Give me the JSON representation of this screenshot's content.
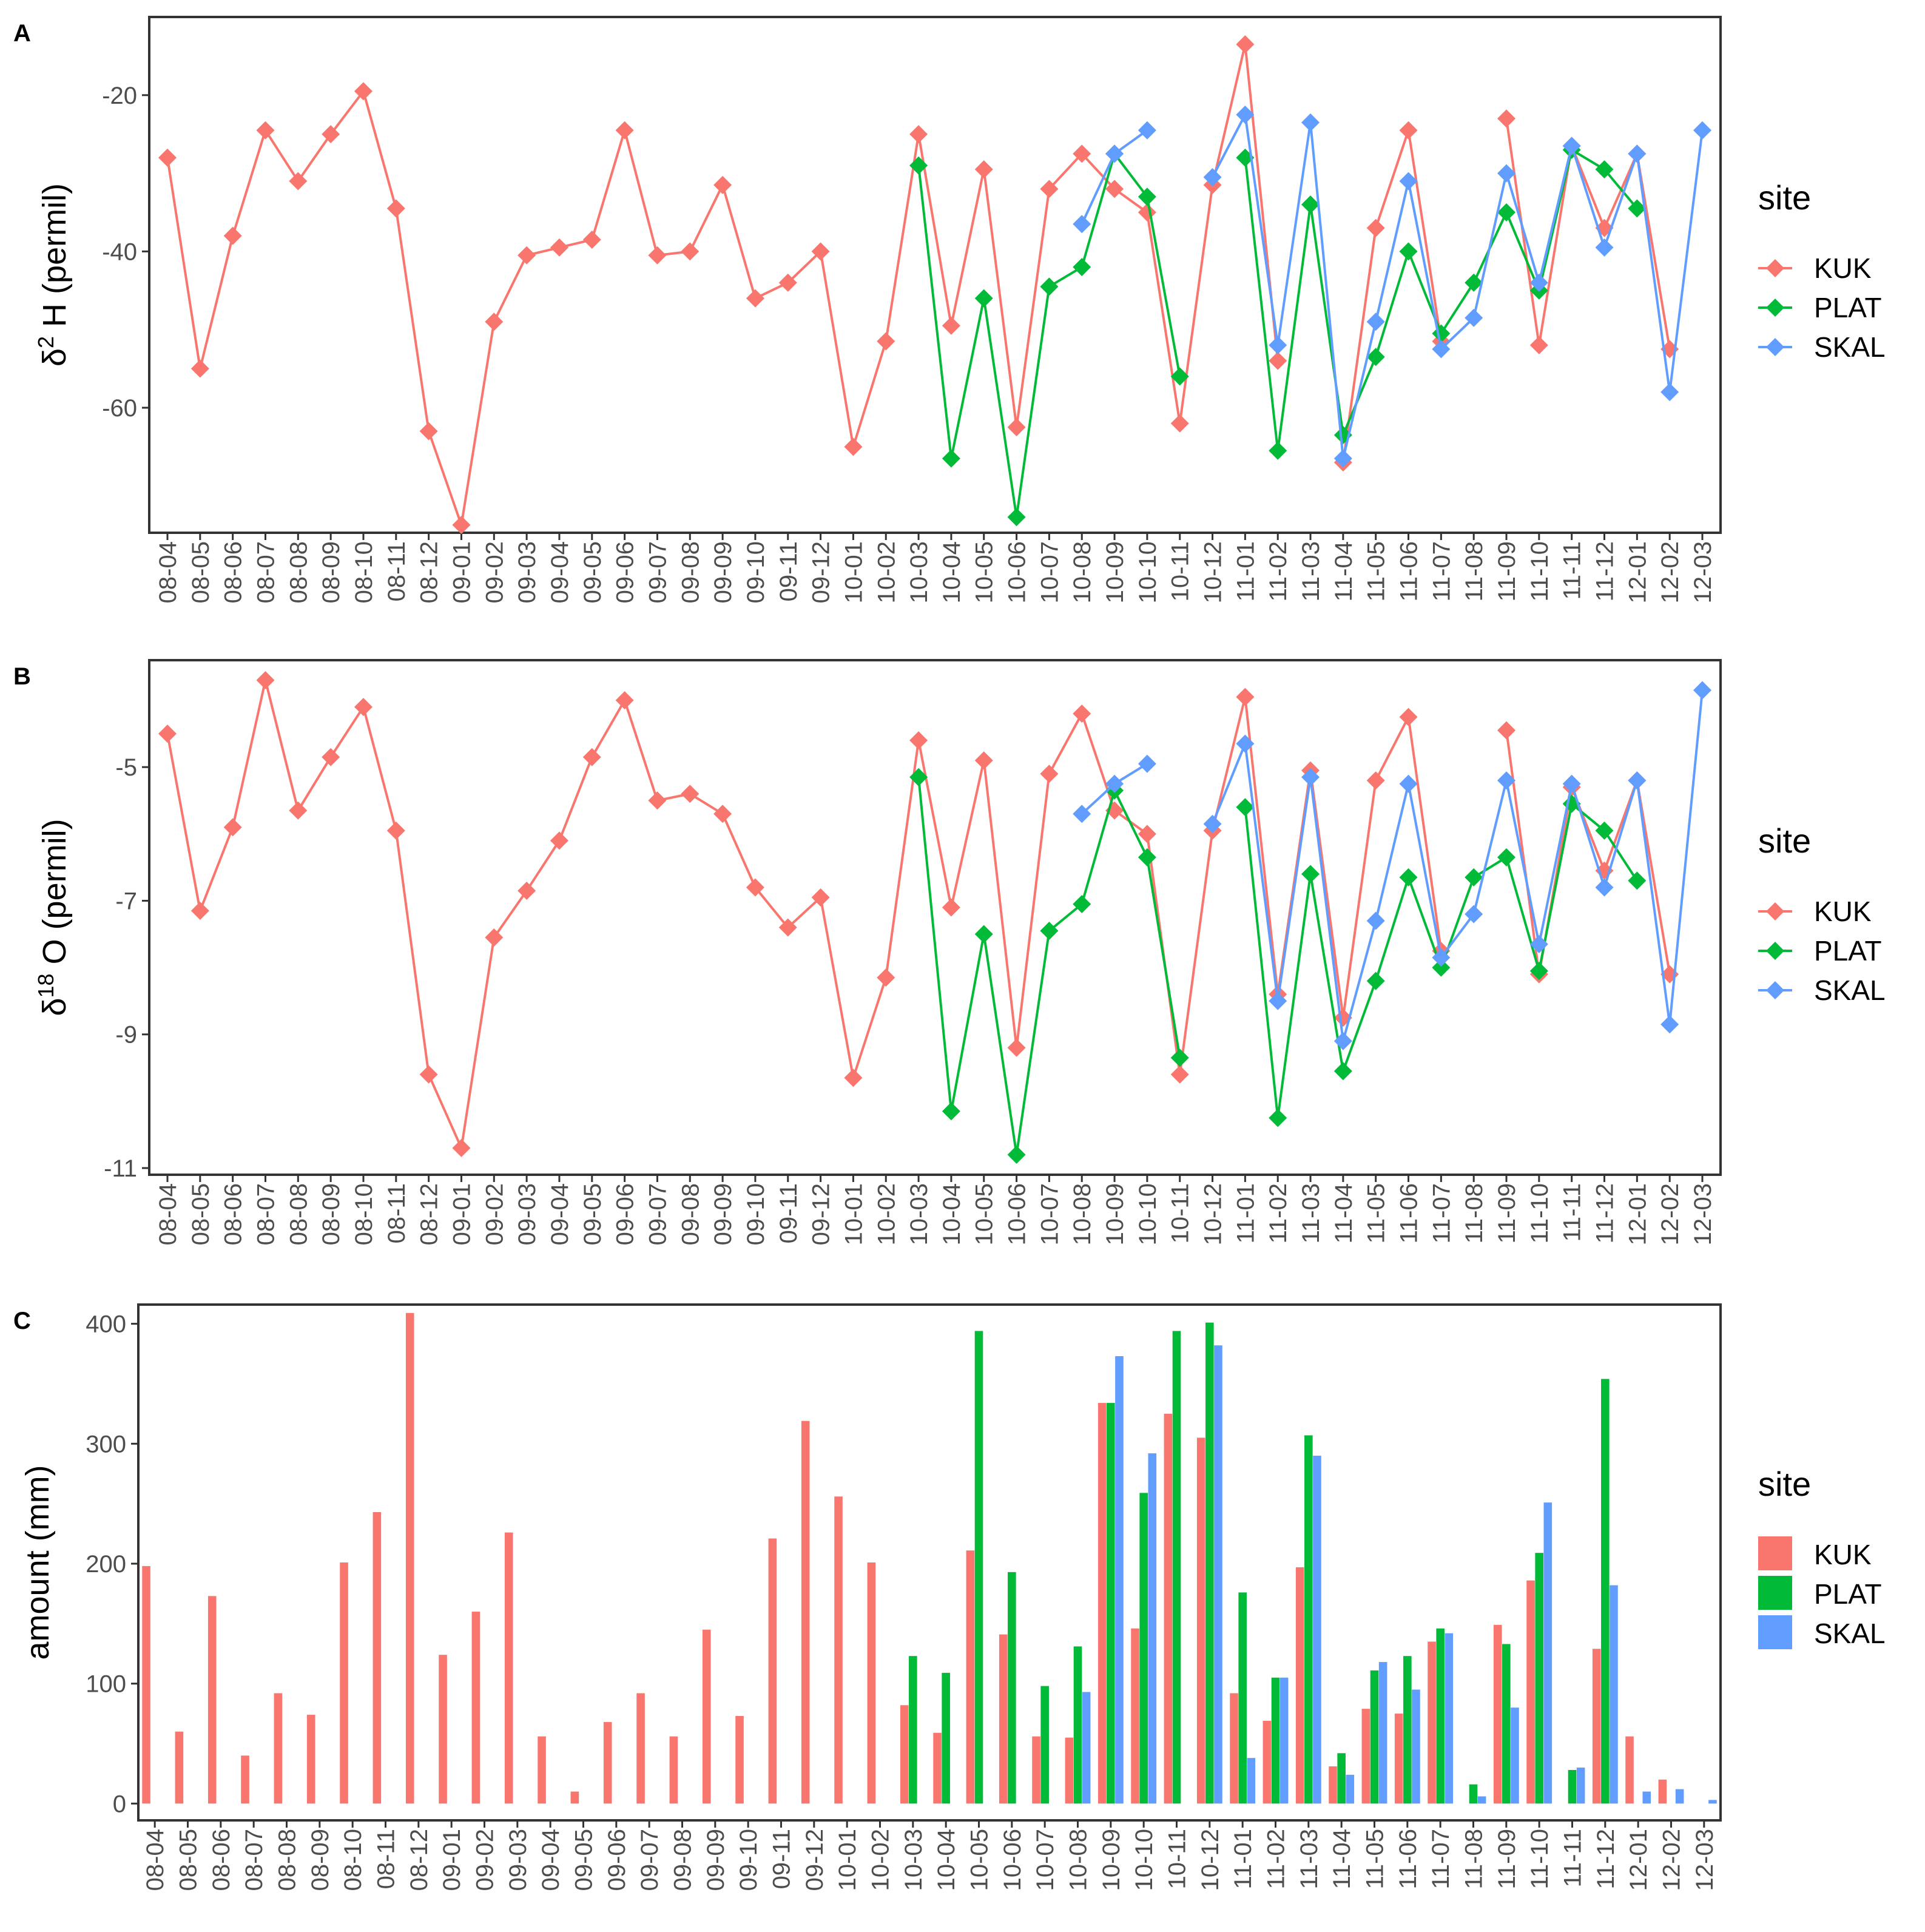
{
  "colors": {
    "KUK": "#F8766D",
    "PLAT": "#00BA38",
    "SKAL": "#619CFF"
  },
  "chart_data": [
    {
      "type": "line",
      "panel_label": "A",
      "ylabel_prefix": "δ",
      "ylabel_sup": "2",
      "ylabel_rest": " H (permil)",
      "ylim": [
        -76,
        -10
      ],
      "yticks": [
        -20,
        -40,
        -60
      ],
      "legend_title": "site",
      "legend_position": "right",
      "categories": [
        "08-04",
        "08-05",
        "08-06",
        "08-07",
        "08-08",
        "08-09",
        "08-10",
        "08-11",
        "08-12",
        "09-01",
        "09-02",
        "09-03",
        "09-04",
        "09-05",
        "09-06",
        "09-07",
        "09-08",
        "09-09",
        "09-10",
        "09-11",
        "09-12",
        "10-01",
        "10-02",
        "10-03",
        "10-04",
        "10-05",
        "10-06",
        "10-07",
        "10-08",
        "10-09",
        "10-10",
        "10-11",
        "10-12",
        "11-01",
        "11-02",
        "11-03",
        "11-04",
        "11-05",
        "11-06",
        "11-07",
        "11-08",
        "11-09",
        "11-10",
        "11-11",
        "11-12",
        "12-01",
        "12-02",
        "12-03"
      ],
      "series": [
        {
          "name": "KUK",
          "values": [
            -28,
            -55,
            -38,
            -24.5,
            -31,
            -25,
            -19.5,
            -34.5,
            -63,
            -75,
            -49,
            -40.5,
            -39.5,
            -38.5,
            -24.5,
            -40.5,
            -40,
            -31.5,
            -46,
            -44,
            -40,
            -65,
            -51.5,
            -25,
            -49.5,
            -29.5,
            -62.5,
            -32,
            -27.5,
            -32,
            -35,
            -62,
            -31.5,
            -13.5,
            -54,
            null,
            -67,
            -37,
            -24.5,
            -51.5,
            null,
            -23,
            -52,
            -26.5,
            -37,
            -27.5,
            -52.5,
            null
          ]
        },
        {
          "name": "PLAT",
          "values": [
            null,
            null,
            null,
            null,
            null,
            null,
            null,
            null,
            null,
            null,
            null,
            null,
            null,
            null,
            null,
            null,
            null,
            null,
            null,
            null,
            null,
            null,
            null,
            -29,
            -66.5,
            -46,
            -74,
            -44.5,
            -42,
            -27.5,
            -33,
            -56,
            null,
            -28,
            -65.5,
            -34,
            -63.5,
            -53.5,
            -40,
            -50.5,
            -44,
            -35,
            -45,
            -27,
            -29.5,
            -34.5,
            null,
            null
          ]
        },
        {
          "name": "SKAL",
          "values": [
            null,
            null,
            null,
            null,
            null,
            null,
            null,
            null,
            null,
            null,
            null,
            null,
            null,
            null,
            null,
            null,
            null,
            null,
            null,
            null,
            null,
            null,
            null,
            null,
            null,
            null,
            null,
            null,
            -36.5,
            -27.5,
            -24.5,
            null,
            -30.5,
            -22.5,
            -52,
            -23.5,
            -66.5,
            -49,
            -31,
            -52.5,
            -48.5,
            -30,
            -44,
            -26.5,
            -39.5,
            -27.5,
            -58,
            -24.5
          ]
        }
      ]
    },
    {
      "type": "line",
      "panel_label": "B",
      "ylabel_prefix": "δ",
      "ylabel_sup": "18",
      "ylabel_rest": " O (permil)",
      "ylim": [
        -11.1,
        -3.4
      ],
      "yticks": [
        -5,
        -7,
        -9,
        -11
      ],
      "legend_title": "site",
      "legend_position": "right",
      "categories": [
        "08-04",
        "08-05",
        "08-06",
        "08-07",
        "08-08",
        "08-09",
        "08-10",
        "08-11",
        "08-12",
        "09-01",
        "09-02",
        "09-03",
        "09-04",
        "09-05",
        "09-06",
        "09-07",
        "09-08",
        "09-09",
        "09-10",
        "09-11",
        "09-12",
        "10-01",
        "10-02",
        "10-03",
        "10-04",
        "10-05",
        "10-06",
        "10-07",
        "10-08",
        "10-09",
        "10-10",
        "10-11",
        "10-12",
        "11-01",
        "11-02",
        "11-03",
        "11-04",
        "11-05",
        "11-06",
        "11-07",
        "11-08",
        "11-09",
        "11-10",
        "11-11",
        "11-12",
        "12-01",
        "12-02",
        "12-03"
      ],
      "series": [
        {
          "name": "KUK",
          "values": [
            -4.5,
            -7.15,
            -5.9,
            -3.7,
            -5.65,
            -4.85,
            -4.1,
            -5.95,
            -9.6,
            -10.7,
            -7.55,
            -6.85,
            -6.1,
            -4.85,
            -4.0,
            -5.5,
            -5.4,
            -5.7,
            -6.8,
            -7.4,
            -6.95,
            -9.65,
            -8.15,
            -4.6,
            -7.1,
            -4.9,
            -9.2,
            -5.1,
            -4.2,
            -5.65,
            -6.0,
            -9.6,
            -5.95,
            -3.95,
            -8.4,
            -5.05,
            -8.75,
            -5.2,
            -4.25,
            -7.75,
            null,
            -4.45,
            -8.1,
            -5.3,
            -6.55,
            -5.2,
            -8.1,
            null
          ]
        },
        {
          "name": "PLAT",
          "values": [
            null,
            null,
            null,
            null,
            null,
            null,
            null,
            null,
            null,
            null,
            null,
            null,
            null,
            null,
            null,
            null,
            null,
            null,
            null,
            null,
            null,
            null,
            null,
            -5.15,
            -10.15,
            -7.5,
            -10.8,
            -7.45,
            -7.05,
            -5.35,
            -6.35,
            -9.35,
            null,
            -5.6,
            -10.25,
            -6.6,
            -9.55,
            -8.2,
            -6.65,
            -8.0,
            -6.65,
            -6.35,
            -8.05,
            -5.55,
            -5.95,
            -6.7,
            null,
            null
          ]
        },
        {
          "name": "SKAL",
          "values": [
            null,
            null,
            null,
            null,
            null,
            null,
            null,
            null,
            null,
            null,
            null,
            null,
            null,
            null,
            null,
            null,
            null,
            null,
            null,
            null,
            null,
            null,
            null,
            null,
            null,
            null,
            null,
            null,
            -5.7,
            -5.25,
            -4.95,
            null,
            -5.85,
            -4.65,
            -8.5,
            -5.15,
            -9.1,
            -7.3,
            -5.25,
            -7.85,
            -7.2,
            -5.2,
            -7.65,
            -5.25,
            -6.8,
            -5.2,
            -8.85,
            -3.85
          ]
        }
      ]
    },
    {
      "type": "bar",
      "panel_label": "C",
      "ylabel": "amount (mm)",
      "ylim": [
        -14,
        416
      ],
      "yticks": [
        0,
        100,
        200,
        300,
        400
      ],
      "legend_title": "site",
      "legend_position": "right",
      "categories": [
        "08-04",
        "08-05",
        "08-06",
        "08-07",
        "08-08",
        "08-09",
        "08-10",
        "08-11",
        "08-12",
        "09-01",
        "09-02",
        "09-03",
        "09-04",
        "09-05",
        "09-06",
        "09-07",
        "09-08",
        "09-09",
        "09-10",
        "09-11",
        "09-12",
        "10-01",
        "10-02",
        "10-03",
        "10-04",
        "10-05",
        "10-06",
        "10-07",
        "10-08",
        "10-09",
        "10-10",
        "10-11",
        "10-12",
        "11-01",
        "11-02",
        "11-03",
        "11-04",
        "11-05",
        "11-06",
        "11-07",
        "11-08",
        "11-09",
        "11-10",
        "11-11",
        "11-12",
        "12-01",
        "12-02",
        "12-03"
      ],
      "series": [
        {
          "name": "KUK",
          "values": [
            198,
            60,
            173,
            40,
            92,
            74,
            201,
            243,
            409,
            124,
            160,
            226,
            56,
            10,
            68,
            92,
            56,
            145,
            73,
            221,
            319,
            256,
            201,
            82,
            59,
            211,
            141,
            56,
            55,
            334,
            146,
            325,
            305,
            92,
            69,
            197,
            31,
            79,
            75,
            135,
            null,
            149,
            186,
            null,
            129,
            56,
            20,
            null
          ]
        },
        {
          "name": "PLAT",
          "values": [
            null,
            null,
            null,
            null,
            null,
            null,
            null,
            null,
            null,
            null,
            null,
            null,
            null,
            null,
            null,
            null,
            null,
            null,
            null,
            null,
            null,
            null,
            null,
            123,
            109,
            394,
            193,
            98,
            131,
            334,
            259,
            394,
            401,
            176,
            105,
            307,
            42,
            111,
            123,
            146,
            16,
            133,
            209,
            28,
            354,
            null,
            null,
            null
          ]
        },
        {
          "name": "SKAL",
          "values": [
            null,
            null,
            null,
            null,
            null,
            null,
            null,
            null,
            null,
            null,
            null,
            null,
            null,
            null,
            null,
            null,
            null,
            null,
            null,
            null,
            null,
            null,
            null,
            null,
            null,
            null,
            null,
            null,
            93,
            373,
            292,
            null,
            382,
            38,
            105,
            290,
            24,
            118,
            95,
            142,
            6,
            80,
            251,
            30,
            182,
            10,
            12,
            3
          ]
        }
      ]
    }
  ]
}
